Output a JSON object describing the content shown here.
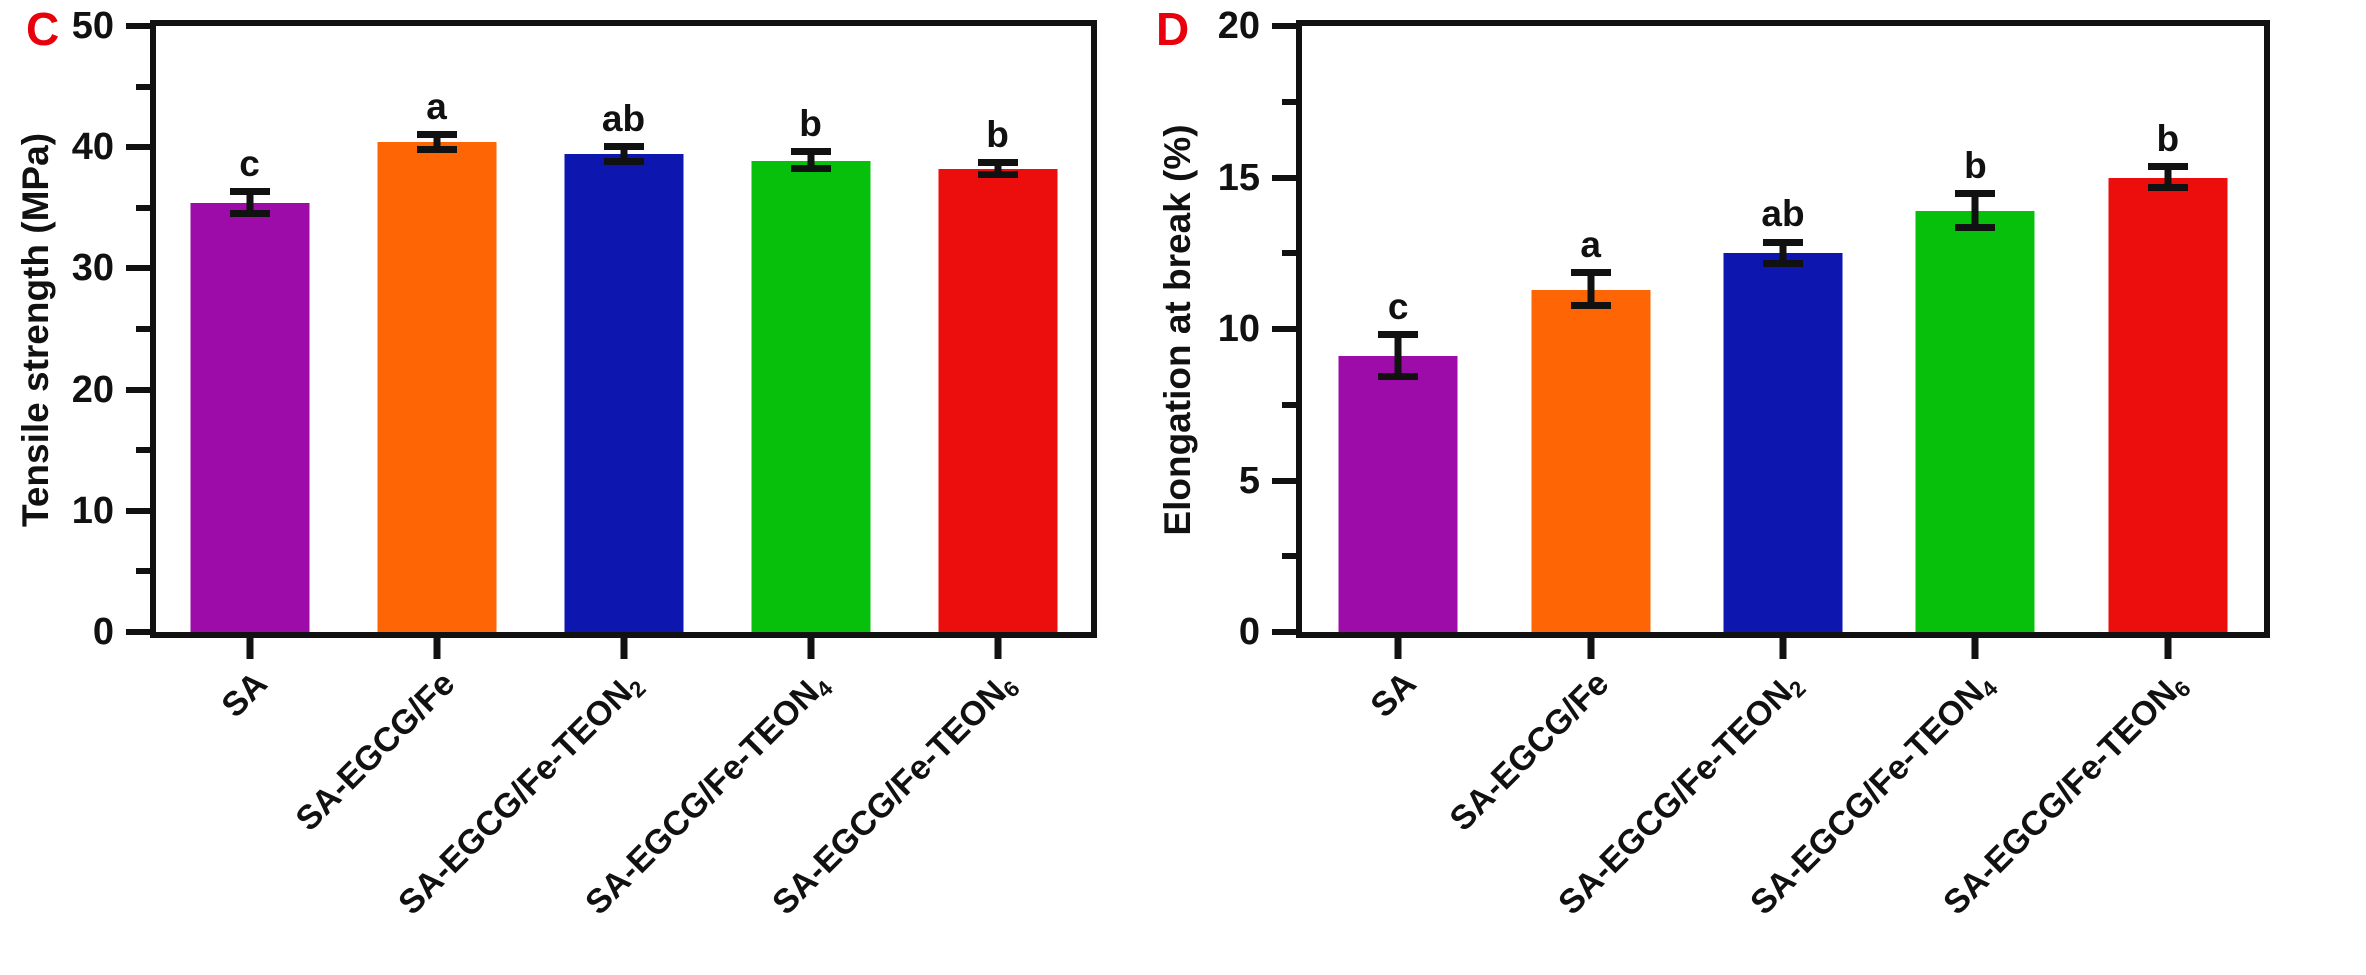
{
  "figure": {
    "background": "#ffffff",
    "axis_color": "#111111",
    "panel_label_color": "#e8000d"
  },
  "chart_data": [
    {
      "type": "bar",
      "panel_label": "C",
      "title": "",
      "xlabel": "",
      "ylabel": "Tensile strength (MPa)",
      "ylim": [
        0,
        50
      ],
      "yticks": [
        0,
        10,
        20,
        30,
        40,
        50
      ],
      "yticks_minor": [
        5,
        15,
        25,
        35,
        45
      ],
      "grid": false,
      "legend": false,
      "categories": [
        "SA",
        "SA-EGCG/Fe",
        "SA-EGCG/Fe-TEON₂",
        "SA-EGCG/Fe-TEON₄",
        "SA-EGCG/Fe-TEON₆"
      ],
      "values": [
        35.4,
        40.4,
        39.4,
        38.9,
        38.2
      ],
      "errors": [
        0.9,
        0.6,
        0.6,
        0.7,
        0.5
      ],
      "sig_labels": [
        "c",
        "a",
        "ab",
        "b",
        "b"
      ],
      "bar_colors": [
        "#9d0ba8",
        "#fe6505",
        "#0d16ae",
        "#07c00c",
        "#ec0d0d"
      ]
    },
    {
      "type": "bar",
      "panel_label": "D",
      "title": "",
      "xlabel": "",
      "ylabel": "Elongation at break (%)",
      "ylim": [
        0,
        20
      ],
      "yticks": [
        0,
        5,
        10,
        15,
        20
      ],
      "yticks_minor": [
        2.5,
        7.5,
        12.5,
        17.5
      ],
      "grid": false,
      "legend": false,
      "categories": [
        "SA",
        "SA-EGCG/Fe",
        "SA-EGCG/Fe-TEON₂",
        "SA-EGCG/Fe-TEON₄",
        "SA-EGCG/Fe-TEON₆"
      ],
      "values": [
        9.1,
        11.3,
        12.5,
        13.9,
        15.0
      ],
      "errors": [
        0.7,
        0.55,
        0.35,
        0.55,
        0.35
      ],
      "sig_labels": [
        "c",
        "a",
        "ab",
        "b",
        "b"
      ],
      "bar_colors": [
        "#9d0ba8",
        "#fe6505",
        "#0d16ae",
        "#07c00c",
        "#ec0d0d"
      ]
    }
  ]
}
